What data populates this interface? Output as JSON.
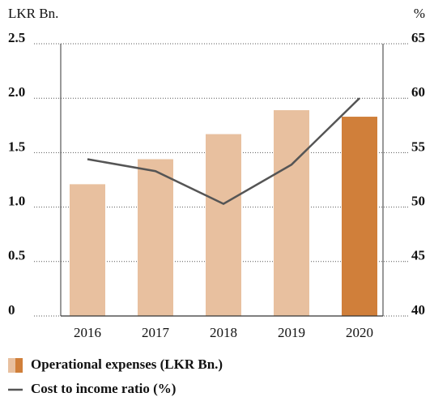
{
  "chart_data": {
    "type": "bar",
    "y_label": "LKR Bn.",
    "y2_label": "%",
    "categories": [
      "2016",
      "2017",
      "2018",
      "2019",
      "2020"
    ],
    "series": [
      {
        "name": "Operational expenses (LKR Bn.)",
        "type": "bar",
        "color": "#e8c09f",
        "colors": [
          "#e8c09f",
          "#e8c09f",
          "#e8c09f",
          "#e8c09f",
          "#d07f3a"
        ],
        "values": [
          1.21,
          1.44,
          1.67,
          1.89,
          1.83
        ]
      },
      {
        "name": "Cost to income ratio (%)",
        "type": "line",
        "axis": "y2",
        "color": "#555555",
        "values": [
          54.4,
          53.3,
          50.3,
          53.9,
          60.0
        ]
      }
    ],
    "ylim": [
      0,
      2.5
    ],
    "yticks": [
      0,
      0.5,
      {
        "value": 1,
        "label": "1.0"
      },
      1.5,
      {
        "value": 2,
        "label": "2.0"
      },
      2.5
    ],
    "y2lim": [
      40,
      65
    ],
    "y2ticks": [
      40,
      45,
      50,
      55,
      60,
      65
    ],
    "grid": true
  }
}
